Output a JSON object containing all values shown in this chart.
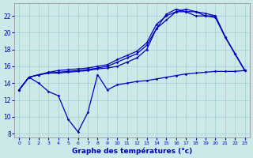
{
  "xlabel": "Graphe des températures (°c)",
  "background_color": "#cce8e8",
  "grid_color": "#9fcfcf",
  "line_color": "#0000bb",
  "ylim": [
    7.5,
    23.5
  ],
  "xlim": [
    -0.5,
    23.5
  ],
  "yticks": [
    8,
    10,
    12,
    14,
    16,
    18,
    20,
    22
  ],
  "xticks": [
    0,
    1,
    2,
    3,
    4,
    5,
    6,
    7,
    8,
    9,
    10,
    11,
    12,
    13,
    14,
    15,
    16,
    17,
    18,
    19,
    20,
    21,
    22,
    23
  ],
  "series": [
    {
      "x": [
        0,
        1,
        2,
        3,
        4,
        5,
        6,
        7,
        8,
        9,
        10,
        11,
        12,
        13,
        14,
        15,
        16,
        17,
        18,
        19,
        20,
        21,
        22,
        23
      ],
      "y": [
        13.2,
        14.7,
        14.0,
        13.0,
        12.5,
        9.7,
        8.2,
        10.5,
        15.0,
        13.2,
        13.8,
        14.0,
        14.2,
        14.3,
        14.5,
        14.7,
        14.9,
        15.1,
        15.2,
        15.3,
        15.4,
        15.4,
        15.4,
        15.5
      ]
    },
    {
      "x": [
        0,
        1,
        2,
        3,
        4,
        5,
        6,
        7,
        8,
        9,
        10,
        11,
        12,
        13,
        14,
        15,
        16,
        17,
        18,
        19,
        20,
        21,
        22,
        23
      ],
      "y": [
        13.2,
        14.7,
        15.0,
        15.2,
        15.2,
        15.3,
        15.4,
        15.5,
        15.7,
        15.8,
        16.0,
        16.5,
        17.0,
        18.0,
        20.5,
        22.2,
        22.8,
        22.5,
        22.5,
        22.3,
        22.0,
        19.5,
        17.5,
        15.5
      ]
    },
    {
      "x": [
        0,
        1,
        2,
        3,
        4,
        5,
        6,
        7,
        8,
        9,
        10,
        11,
        12,
        13,
        14,
        15,
        16,
        17,
        18,
        19,
        20,
        21,
        22,
        23
      ],
      "y": [
        13.2,
        14.7,
        15.0,
        15.2,
        15.3,
        15.4,
        15.5,
        15.6,
        15.8,
        16.0,
        16.5,
        17.0,
        17.5,
        18.5,
        20.5,
        21.5,
        22.5,
        22.8,
        22.5,
        22.0,
        22.0,
        19.5,
        17.5,
        15.5
      ]
    },
    {
      "x": [
        0,
        1,
        2,
        3,
        4,
        5,
        6,
        7,
        8,
        9,
        10,
        11,
        12,
        13,
        14,
        15,
        16,
        17,
        18,
        19,
        20,
        21,
        22,
        23
      ],
      "y": [
        13.2,
        14.7,
        15.0,
        15.3,
        15.5,
        15.6,
        15.7,
        15.8,
        16.0,
        16.2,
        16.8,
        17.3,
        17.8,
        18.8,
        21.0,
        22.0,
        22.5,
        22.5,
        22.0,
        22.0,
        21.8,
        19.5,
        17.5,
        15.5
      ]
    }
  ]
}
